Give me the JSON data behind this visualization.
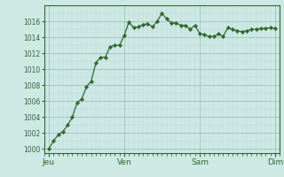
{
  "background_color": "#cee8e4",
  "line_color": "#2d6a2d",
  "marker_color": "#2d6a2d",
  "grid_color_major": "#98c4bc",
  "grid_color_minor": "#b8d8d4",
  "x_tick_labels": [
    "Jeu",
    "Ven",
    "Sam",
    "Dim"
  ],
  "x_tick_positions": [
    0,
    96,
    192,
    288
  ],
  "ylim": [
    999.5,
    1018.0
  ],
  "yticks": [
    1000,
    1002,
    1004,
    1006,
    1008,
    1010,
    1012,
    1014,
    1016
  ],
  "xlim": [
    -6,
    294
  ],
  "data_x": [
    0,
    6,
    12,
    18,
    24,
    30,
    36,
    42,
    48,
    54,
    60,
    66,
    72,
    78,
    84,
    90,
    96,
    102,
    108,
    114,
    120,
    126,
    132,
    138,
    144,
    150,
    156,
    162,
    168,
    174,
    180,
    186,
    192,
    198,
    204,
    210,
    216,
    222,
    228,
    234,
    240,
    246,
    252,
    258,
    264,
    270,
    276,
    282,
    288
  ],
  "data_y": [
    1000.0,
    1001.0,
    1001.8,
    1002.2,
    1003.0,
    1004.0,
    1005.8,
    1006.3,
    1007.8,
    1008.5,
    1010.8,
    1011.5,
    1011.5,
    1012.8,
    1013.0,
    1013.0,
    1014.2,
    1015.9,
    1015.2,
    1015.3,
    1015.6,
    1015.7,
    1015.3,
    1016.0,
    1017.0,
    1016.3,
    1015.8,
    1015.8,
    1015.5,
    1015.5,
    1015.0,
    1015.5,
    1014.5,
    1014.3,
    1014.1,
    1014.1,
    1014.4,
    1014.1,
    1015.2,
    1015.0,
    1014.8,
    1014.7,
    1014.8,
    1015.0,
    1015.0,
    1015.1,
    1015.1,
    1015.2,
    1015.1
  ]
}
